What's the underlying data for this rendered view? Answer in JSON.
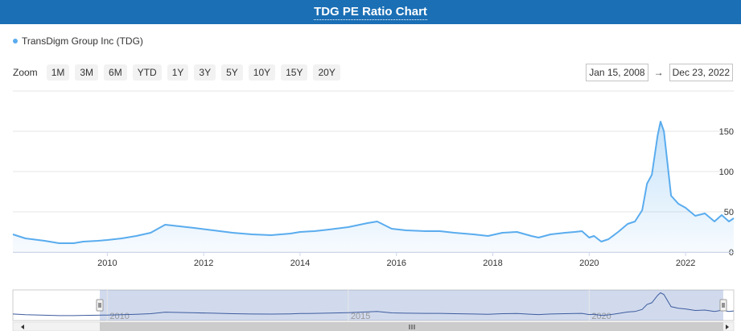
{
  "title": "TDG PE Ratio Chart",
  "legend": {
    "label": "TransDigm Group Inc (TDG)",
    "color": "#5aacee"
  },
  "zoom": {
    "label": "Zoom",
    "buttons": [
      "1M",
      "3M",
      "6M",
      "YTD",
      "1Y",
      "3Y",
      "5Y",
      "10Y",
      "15Y",
      "20Y"
    ]
  },
  "range": {
    "from": "Jan 15, 2008",
    "arrow": "→",
    "to": "Dec 23, 2022"
  },
  "chart_data": {
    "type": "area",
    "series": [
      {
        "name": "TransDigm Group Inc (TDG)",
        "x": [
          2008.04,
          2008.3,
          2008.7,
          2009.0,
          2009.3,
          2009.5,
          2009.8,
          2010.0,
          2010.3,
          2010.6,
          2010.9,
          2011.2,
          2011.5,
          2011.8,
          2012.2,
          2012.6,
          2013.0,
          2013.4,
          2013.8,
          2014.0,
          2014.3,
          2014.6,
          2015.0,
          2015.4,
          2015.6,
          2015.9,
          2016.2,
          2016.6,
          2016.9,
          2017.2,
          2017.6,
          2017.9,
          2018.2,
          2018.5,
          2018.8,
          2018.95,
          2019.2,
          2019.5,
          2019.7,
          2019.85,
          2020.0,
          2020.1,
          2020.25,
          2020.4,
          2020.6,
          2020.8,
          2020.95,
          2021.1,
          2021.2,
          2021.3,
          2021.42,
          2021.48,
          2021.55,
          2021.7,
          2021.85,
          2022.0,
          2022.2,
          2022.4,
          2022.6,
          2022.75,
          2022.9,
          2023.0
        ],
        "values": [
          22,
          17,
          14,
          11,
          11,
          13,
          14,
          15,
          17,
          20,
          24,
          34,
          32,
          30,
          27,
          24,
          22,
          21,
          23,
          25,
          26,
          28,
          31,
          36,
          38,
          29,
          27,
          26,
          26,
          24,
          22,
          20,
          24,
          25,
          20,
          18,
          22,
          24,
          25,
          26,
          18,
          20,
          13,
          16,
          25,
          35,
          38,
          52,
          85,
          96,
          145,
          162,
          150,
          70,
          60,
          55,
          45,
          48,
          38,
          46,
          38,
          42
        ]
      }
    ],
    "x_ticks": [
      "2010",
      "2012",
      "2014",
      "2016",
      "2018",
      "2020",
      "2022"
    ],
    "y_ticks": [
      "0",
      "50",
      "100",
      "150"
    ],
    "xlim": [
      2008.04,
      2023.0
    ],
    "ylim": [
      0,
      200
    ],
    "grid": true,
    "legend_position": "top-left",
    "navigator": {
      "x_ticks": [
        "2010",
        "2015",
        "2020"
      ],
      "selected_range": [
        "Jan 15, 2008",
        "Dec 23, 2022"
      ]
    }
  }
}
